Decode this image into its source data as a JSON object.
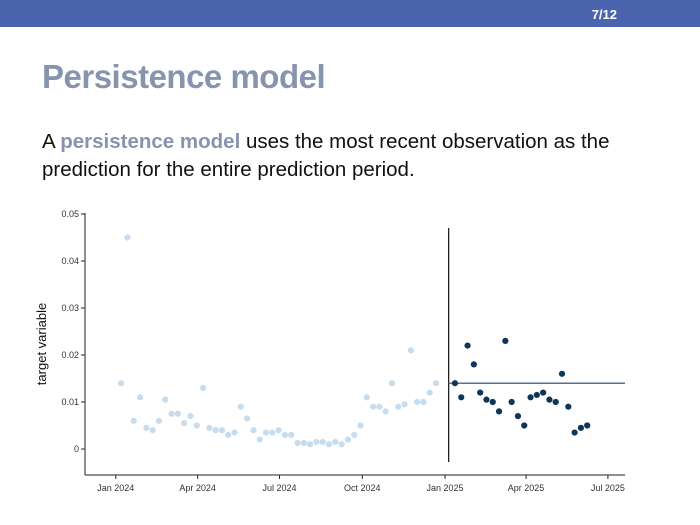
{
  "header": {
    "slide_number": "7/12",
    "bar_color": "#4a65ad"
  },
  "slide": {
    "title": "Persistence model",
    "body_prefix": "A ",
    "body_highlight": "persistence model",
    "body_suffix": " uses the most recent observation as the prediction for the entire prediction period.",
    "highlight_color": "#8794ae"
  },
  "chart_data": {
    "type": "scatter",
    "ylabel": "target variable",
    "xlabel": "",
    "ylim": [
      -0.003,
      0.05
    ],
    "yticks": [
      0,
      0.01,
      0.02,
      0.03,
      0.04,
      0.05
    ],
    "ytick_labels": [
      "0",
      "0.01",
      "0.02",
      "0.03",
      "0.04",
      "0.05"
    ],
    "xticks": [
      "2024-01-01",
      "2024-04-01",
      "2024-07-01",
      "2024-10-01",
      "2025-01-01",
      "2025-04-01",
      "2025-07-01"
    ],
    "xtick_labels": [
      "Jan 2024",
      "Apr 2024",
      "Jul 2024",
      "Oct 2024",
      "Jan 2025",
      "Apr 2025",
      "Jul 2025"
    ],
    "xlim": [
      "2023-12-10",
      "2025-07-20"
    ],
    "grid": false,
    "legend": "none",
    "split_date": "2025-01-05",
    "persistence_value": 0.014,
    "persistence_range": [
      "2025-01-05",
      "2025-07-20"
    ],
    "series": [
      {
        "role": "history",
        "color": "#c6dcef",
        "points": [
          [
            "2024-01-07",
            0.014
          ],
          [
            "2024-01-14",
            0.045
          ],
          [
            "2024-01-21",
            0.006
          ],
          [
            "2024-01-28",
            0.011
          ],
          [
            "2024-02-04",
            0.0045
          ],
          [
            "2024-02-11",
            0.004
          ],
          [
            "2024-02-18",
            0.006
          ],
          [
            "2024-02-25",
            0.0105
          ],
          [
            "2024-03-03",
            0.0075
          ],
          [
            "2024-03-10",
            0.0075
          ],
          [
            "2024-03-17",
            0.0055
          ],
          [
            "2024-03-24",
            0.007
          ],
          [
            "2024-03-31",
            0.005
          ],
          [
            "2024-04-07",
            0.013
          ],
          [
            "2024-04-14",
            0.0045
          ],
          [
            "2024-04-21",
            0.004
          ],
          [
            "2024-04-28",
            0.004
          ],
          [
            "2024-05-05",
            0.003
          ],
          [
            "2024-05-12",
            0.0035
          ],
          [
            "2024-05-19",
            0.009
          ],
          [
            "2024-05-26",
            0.0065
          ],
          [
            "2024-06-02",
            0.004
          ],
          [
            "2024-06-09",
            0.002
          ],
          [
            "2024-06-16",
            0.0035
          ],
          [
            "2024-06-23",
            0.0035
          ],
          [
            "2024-06-30",
            0.004
          ],
          [
            "2024-07-07",
            0.003
          ],
          [
            "2024-07-14",
            0.003
          ],
          [
            "2024-07-21",
            0.0013
          ],
          [
            "2024-07-28",
            0.0013
          ],
          [
            "2024-08-04",
            0.001
          ],
          [
            "2024-08-11",
            0.0015
          ],
          [
            "2024-08-18",
            0.0015
          ],
          [
            "2024-08-25",
            0.001
          ],
          [
            "2024-09-01",
            0.0015
          ],
          [
            "2024-09-08",
            0.001
          ],
          [
            "2024-09-15",
            0.002
          ],
          [
            "2024-09-22",
            0.003
          ],
          [
            "2024-09-29",
            0.005
          ],
          [
            "2024-10-06",
            0.011
          ],
          [
            "2024-10-13",
            0.009
          ],
          [
            "2024-10-20",
            0.009
          ],
          [
            "2024-10-27",
            0.008
          ],
          [
            "2024-11-03",
            0.014
          ],
          [
            "2024-11-10",
            0.009
          ],
          [
            "2024-11-17",
            0.0095
          ],
          [
            "2024-11-24",
            0.021
          ],
          [
            "2024-12-01",
            0.01
          ],
          [
            "2024-12-08",
            0.01
          ],
          [
            "2024-12-15",
            0.012
          ],
          [
            "2024-12-22",
            0.014
          ]
        ]
      },
      {
        "role": "actual",
        "color": "#0f3557",
        "points": [
          [
            "2025-01-12",
            0.014
          ],
          [
            "2025-01-19",
            0.011
          ],
          [
            "2025-01-26",
            0.022
          ],
          [
            "2025-02-02",
            0.018
          ],
          [
            "2025-02-09",
            0.012
          ],
          [
            "2025-02-16",
            0.0105
          ],
          [
            "2025-02-23",
            0.01
          ],
          [
            "2025-03-02",
            0.008
          ],
          [
            "2025-03-09",
            0.023
          ],
          [
            "2025-03-16",
            0.01
          ],
          [
            "2025-03-23",
            0.007
          ],
          [
            "2025-03-30",
            0.005
          ],
          [
            "2025-04-06",
            0.011
          ],
          [
            "2025-04-13",
            0.0115
          ],
          [
            "2025-04-20",
            0.012
          ],
          [
            "2025-04-27",
            0.0105
          ],
          [
            "2025-05-04",
            0.01
          ],
          [
            "2025-05-11",
            0.016
          ],
          [
            "2025-05-18",
            0.009
          ],
          [
            "2025-05-25",
            0.0035
          ],
          [
            "2025-06-01",
            0.0045
          ],
          [
            "2025-06-08",
            0.005
          ]
        ]
      }
    ]
  }
}
